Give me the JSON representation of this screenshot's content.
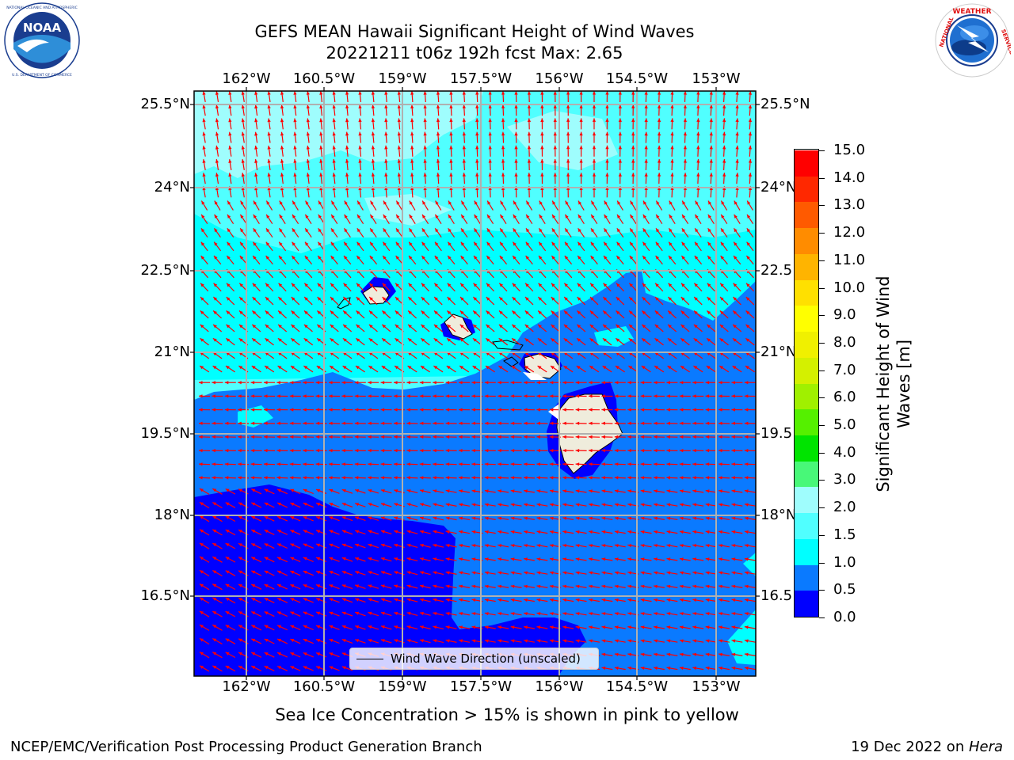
{
  "header": {
    "title_line1": "GEFS MEAN Hawaii Significant Height of Wind Waves",
    "title_line2": "20221211 t06z 192h fcst   Max: 2.65"
  },
  "logos": {
    "left": {
      "name": "NOAA",
      "text": "NOAA",
      "ring_text": "NATIONAL OCEANIC AND ATMOSPHERIC ADMINISTRATION · U.S. DEPARTMENT OF COMMERCE"
    },
    "right": {
      "name": "National Weather Service",
      "ring_text": "NATIONAL WEATHER SERVICE"
    }
  },
  "map": {
    "lon_labels": [
      "162°W",
      "160.5°W",
      "159°W",
      "157.5°W",
      "156°W",
      "154.5°W",
      "153°W"
    ],
    "lat_labels": [
      "25.5°N",
      "24°N",
      "22.5°N",
      "21°N",
      "19.5°N",
      "18°N",
      "16.5°N"
    ],
    "lat_labels_right": [
      "25.5°N",
      "24°N",
      "22.5",
      "21°N",
      "19.5",
      "18°N",
      "16.5"
    ],
    "wind_direction_note": "arrows from northeast (north of ~20.5°N) and east (south)",
    "arrow_color": "#ff0000",
    "land_color": "#efecdc"
  },
  "legend": {
    "label": "Wind Wave Direction (unscaled)"
  },
  "colorbar": {
    "label_line1": "Significant Height of Wind",
    "label_line2": "Waves [m]",
    "ticks": [
      "15.0",
      "14.0",
      "13.0",
      "12.0",
      "11.0",
      "10.0",
      "9.0",
      "8.0",
      "7.0",
      "6.0",
      "5.0",
      "4.0",
      "3.0",
      "2.0",
      "1.5",
      "1.0",
      "0.5",
      "0.0"
    ],
    "colors_bottom_to_top": [
      "#0000ff",
      "#0a7aff",
      "#00ffff",
      "#50ffff",
      "#9ffdfd",
      "#48f878",
      "#00e400",
      "#55f000",
      "#a0f000",
      "#d4f000",
      "#f0f000",
      "#ffff00",
      "#ffe000",
      "#ffb400",
      "#ff8c00",
      "#ff5a00",
      "#ff2800",
      "#ff0000"
    ]
  },
  "notes": {
    "sea_ice": "Sea Ice Concentration > 15% is shown in pink to yellow"
  },
  "footer": {
    "left": "NCEP/EMC/Verification Post Processing Product Generation Branch",
    "right_date": "19 Dec 2022 on ",
    "right_host": "Hera"
  }
}
